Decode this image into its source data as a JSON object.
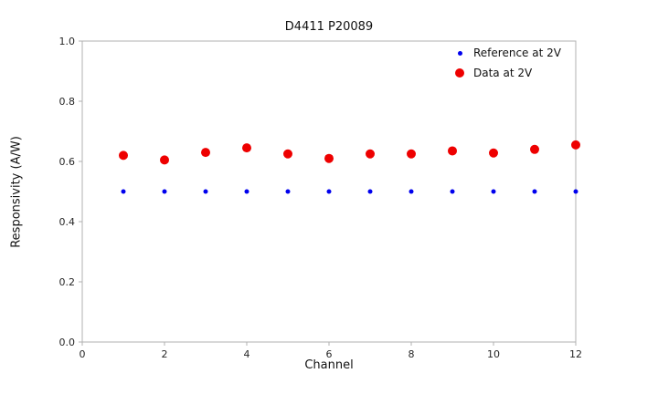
{
  "chart_data": {
    "type": "scatter",
    "title": "D4411 P20089",
    "xlabel": "Channel",
    "ylabel": "Responsivity (A/W)",
    "xlim": [
      0,
      12
    ],
    "ylim": [
      0.0,
      1.0
    ],
    "xticks": [
      0,
      2,
      4,
      6,
      8,
      10,
      12
    ],
    "xtick_labels": [
      "0",
      "2",
      "4",
      "6",
      "8",
      "10",
      "12"
    ],
    "yticks": [
      0.0,
      0.2,
      0.4,
      0.6,
      0.8,
      1.0
    ],
    "ytick_labels": [
      "0.0",
      "0.2",
      "0.4",
      "0.6",
      "0.8",
      "1.0"
    ],
    "grid": false,
    "legend_position": "upper right",
    "x": [
      1,
      2,
      3,
      4,
      5,
      6,
      7,
      8,
      9,
      10,
      11,
      12
    ],
    "series": [
      {
        "name": "Reference at 2V",
        "color": "#0000ee",
        "marker_size": 2.5,
        "values": [
          0.5,
          0.5,
          0.5,
          0.5,
          0.5,
          0.5,
          0.5,
          0.5,
          0.5,
          0.5,
          0.5,
          0.5
        ]
      },
      {
        "name": "Data at 2V",
        "color": "#ee0000",
        "marker_size": 5,
        "values": [
          0.62,
          0.605,
          0.63,
          0.645,
          0.625,
          0.61,
          0.625,
          0.625,
          0.635,
          0.628,
          0.64,
          0.655
        ]
      }
    ],
    "axis_color": "#b0b0b0",
    "tick_label_color": "#262626"
  },
  "legend": {
    "items": [
      {
        "label": "Reference at 2V"
      },
      {
        "label": "Data at 2V"
      }
    ]
  }
}
